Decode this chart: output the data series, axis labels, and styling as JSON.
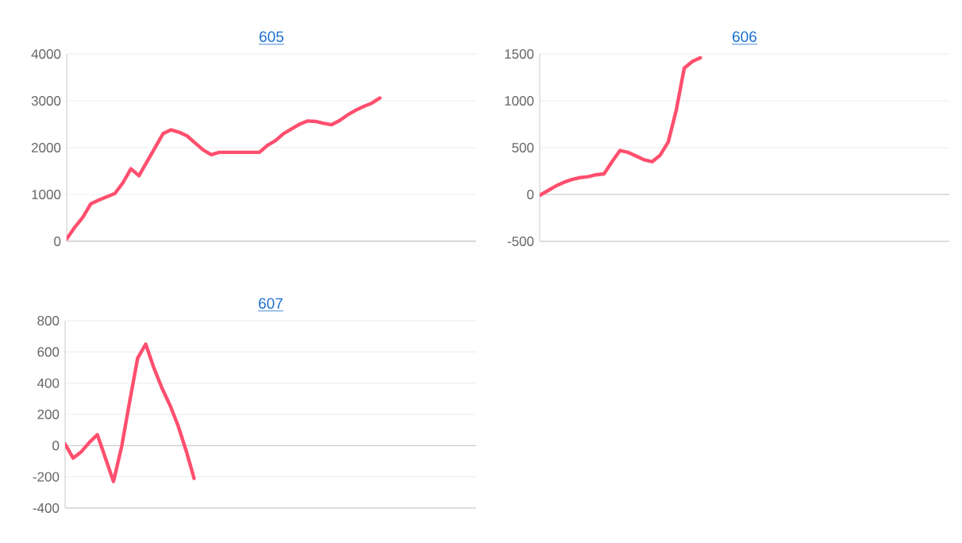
{
  "chart_data": [
    {
      "type": "line",
      "title": "605",
      "categories": [
        null,
        null,
        null,
        null,
        null,
        null,
        null,
        null,
        null,
        null,
        null,
        null,
        null,
        null,
        null,
        null,
        null,
        null,
        null,
        null,
        null,
        null,
        null,
        null,
        null,
        null,
        null,
        null,
        null,
        null,
        null,
        null,
        null,
        null,
        null,
        null,
        null,
        null,
        null,
        null,
        null,
        null,
        null,
        null,
        null,
        null,
        null,
        null,
        null,
        null,
        null,
        null
      ],
      "series": [
        {
          "color": "#ff4f6e",
          "values": [
            50,
            300,
            510,
            800,
            880,
            950,
            1020,
            1250,
            1550,
            1400,
            1700,
            2000,
            2300,
            2380,
            2330,
            2250,
            2100,
            1950,
            1850,
            1900,
            1900,
            1900,
            1900,
            1900,
            1900,
            2050,
            2150,
            2300,
            2400,
            2500,
            2570,
            2560,
            2520,
            2490,
            2580,
            2700,
            2800,
            2880,
            2950,
            3060,
            null,
            null,
            null,
            null,
            null,
            null,
            null,
            null,
            null,
            null,
            null,
            null
          ]
        }
      ],
      "ylim": [
        0,
        4000
      ],
      "yticks": [
        0,
        1000,
        2000,
        3000,
        4000
      ],
      "grid": "y",
      "tick_labels": "y",
      "marker": "none",
      "line_style": "solid"
    },
    {
      "type": "line",
      "title": "606",
      "categories": [
        null,
        null,
        null,
        null,
        null,
        null,
        null,
        null,
        null,
        null,
        null,
        null,
        null,
        null,
        null,
        null,
        null,
        null,
        null,
        null,
        null,
        null,
        null,
        null,
        null,
        null,
        null,
        null,
        null,
        null,
        null,
        null,
        null,
        null,
        null,
        null,
        null,
        null,
        null,
        null,
        null,
        null,
        null,
        null,
        null,
        null,
        null,
        null,
        null,
        null,
        null,
        null
      ],
      "series": [
        {
          "color": "#ff4f6e",
          "values": [
            -10,
            40,
            90,
            130,
            160,
            180,
            190,
            210,
            220,
            350,
            470,
            450,
            410,
            370,
            350,
            420,
            560,
            900,
            1350,
            1420,
            1460,
            null,
            null,
            null,
            null,
            null,
            null,
            null,
            null,
            null,
            null,
            null,
            null,
            null,
            null,
            null,
            null,
            null,
            null,
            null,
            null,
            null,
            null,
            null,
            null,
            null,
            null,
            null,
            null,
            null,
            null,
            null
          ]
        }
      ],
      "ylim": [
        -500,
        1500
      ],
      "yticks": [
        -500,
        0,
        500,
        1000,
        1500
      ],
      "grid": "y",
      "tick_labels": "y",
      "marker": "none",
      "line_style": "solid"
    },
    {
      "type": "line",
      "title": "607",
      "categories": [
        null,
        null,
        null,
        null,
        null,
        null,
        null,
        null,
        null,
        null,
        null,
        null,
        null,
        null,
        null,
        null,
        null,
        null,
        null,
        null,
        null,
        null,
        null,
        null,
        null,
        null,
        null,
        null,
        null,
        null,
        null,
        null,
        null,
        null,
        null,
        null,
        null,
        null,
        null,
        null,
        null,
        null,
        null,
        null,
        null,
        null,
        null,
        null,
        null,
        null,
        null,
        null
      ],
      "series": [
        {
          "color": "#ff4f6e",
          "values": [
            10,
            -80,
            -40,
            20,
            70,
            -80,
            -230,
            -10,
            280,
            560,
            650,
            500,
            370,
            260,
            130,
            -30,
            -210,
            null,
            null,
            null,
            null,
            null,
            null,
            null,
            null,
            null,
            null,
            null,
            null,
            null,
            null,
            null,
            null,
            null,
            null,
            null,
            null,
            null,
            null,
            null,
            null,
            null,
            null,
            null,
            null,
            null,
            null,
            null,
            null,
            null,
            null,
            null
          ]
        }
      ],
      "ylim": [
        -400,
        800
      ],
      "yticks": [
        -400,
        -200,
        0,
        200,
        400,
        600,
        800
      ],
      "grid": "y",
      "tick_labels": "y",
      "marker": "none",
      "line_style": "solid"
    }
  ]
}
